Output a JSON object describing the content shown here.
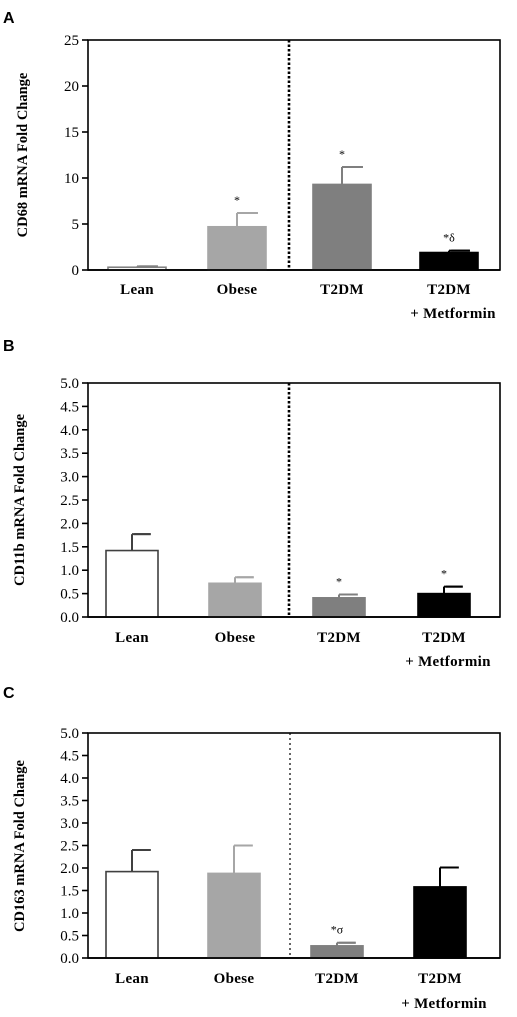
{
  "chart_data": [
    {
      "type": "bar",
      "panel": "A",
      "ylabel": "CD68 mRNA Fold Change",
      "xlabel": "",
      "ylim": [
        0,
        25
      ],
      "yticks": [
        0,
        5,
        10,
        15,
        20,
        25
      ],
      "ytick_labels": [
        "0",
        "5",
        "10",
        "15",
        "20",
        "25"
      ],
      "categories": [
        "Lean",
        "Obese",
        "T2DM",
        "T2DM"
      ],
      "category_sublabels": [
        "",
        "",
        "",
        "+ Metformin"
      ],
      "values": [
        0.3,
        4.7,
        9.3,
        1.9
      ],
      "errors": [
        0.1,
        1.5,
        1.9,
        0.2
      ],
      "annotations": [
        "",
        "*",
        "*",
        "*δ"
      ],
      "colors": [
        "#ffffff",
        "#a6a6a6",
        "#7f7f7f",
        "#000000"
      ],
      "edge_colors": [
        "#808080",
        "#a6a6a6",
        "#7f7f7f",
        "#000000"
      ],
      "separator": "dotted-thick",
      "grid": false
    },
    {
      "type": "bar",
      "panel": "B",
      "ylabel": "CD11b mRNA Fold Change",
      "xlabel": "",
      "ylim": [
        0,
        5
      ],
      "yticks": [
        0,
        0.5,
        1,
        1.5,
        2,
        2.5,
        3,
        3.5,
        4,
        4.5,
        5
      ],
      "ytick_labels": [
        "0.0",
        "0.5",
        "1.0",
        "1.5",
        "2.0",
        "2.5",
        "3.0",
        "3.5",
        "4.0",
        "4.5",
        "5.0"
      ],
      "categories": [
        "Lean",
        "Obese",
        "T2DM",
        "T2DM"
      ],
      "category_sublabels": [
        "",
        "",
        "",
        "+ Metformin"
      ],
      "values": [
        1.42,
        0.72,
        0.41,
        0.5
      ],
      "errors": [
        0.35,
        0.13,
        0.07,
        0.15
      ],
      "annotations": [
        "",
        "",
        "*",
        "*"
      ],
      "colors": [
        "#ffffff",
        "#a6a6a6",
        "#7f7f7f",
        "#000000"
      ],
      "edge_colors": [
        "#404040",
        "#a6a6a6",
        "#7f7f7f",
        "#000000"
      ],
      "separator": "dotted-thick",
      "grid": false
    },
    {
      "type": "bar",
      "panel": "C",
      "ylabel": "CD163 mRNA Fold Change",
      "xlabel": "",
      "ylim": [
        0,
        5
      ],
      "yticks": [
        0,
        0.5,
        1,
        1.5,
        2,
        2.5,
        3,
        3.5,
        4,
        4.5,
        5
      ],
      "ytick_labels": [
        "0.0",
        "0.5",
        "1.0",
        "1.5",
        "2.0",
        "2.5",
        "3.0",
        "3.5",
        "4.0",
        "4.5",
        "5.0"
      ],
      "categories": [
        "Lean",
        "Obese",
        "T2DM",
        "T2DM"
      ],
      "category_sublabels": [
        "",
        "",
        "",
        "+ Metformin"
      ],
      "values": [
        1.92,
        1.88,
        0.27,
        1.58
      ],
      "errors": [
        0.48,
        0.62,
        0.07,
        0.43
      ],
      "annotations": [
        "",
        "",
        "*σ",
        ""
      ],
      "colors": [
        "#ffffff",
        "#a6a6a6",
        "#7f7f7f",
        "#000000"
      ],
      "edge_colors": [
        "#404040",
        "#a6a6a6",
        "#7f7f7f",
        "#000000"
      ],
      "separator": "dotted-thin",
      "grid": false
    }
  ]
}
